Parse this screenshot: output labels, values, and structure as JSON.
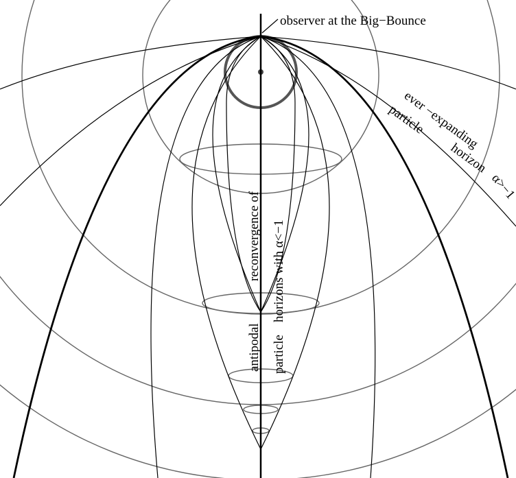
{
  "labels": {
    "observer": "observer   at  the  Big−Bounce",
    "ever_expanding": "ever −expanding",
    "particle_right": "particle",
    "horizon_right": "horizon",
    "alpha_gt": "α>−1",
    "reconvergence": "reconvergence    of",
    "horizons_with": "horizons    with   α<−1",
    "antipodal": "antipodal",
    "particle_left": "particle"
  }
}
